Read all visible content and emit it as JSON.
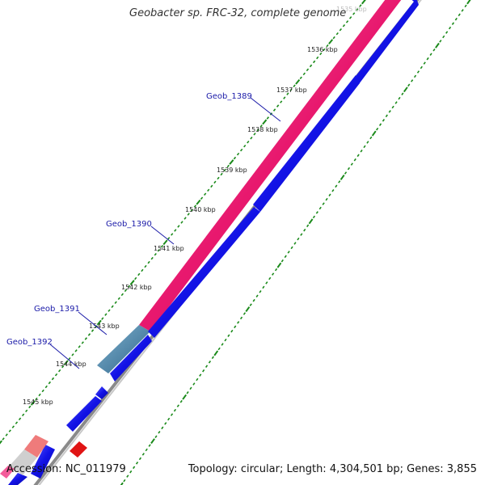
{
  "title": "Geobacter sp. FRC-32, complete genome",
  "accession_label": "Accession:",
  "accession": "NC_011979",
  "topology_label": "Topology:",
  "topology": "circular",
  "length_label": "Length:",
  "length": "4,304,501 bp",
  "genes_label": "Genes:",
  "genes": "3,855",
  "ticks": [
    {
      "label": "1535 kbp",
      "faded": true
    },
    {
      "label": "1536 kbp"
    },
    {
      "label": "1537 kbp"
    },
    {
      "label": "1538 kbp"
    },
    {
      "label": "1539 kbp"
    },
    {
      "label": "1540 kbp"
    },
    {
      "label": "1541 kbp"
    },
    {
      "label": "1542 kbp"
    },
    {
      "label": "1543 kbp"
    },
    {
      "label": "1544 kbp"
    },
    {
      "label": "1545 kbp"
    }
  ],
  "gene_labels": [
    {
      "label": "Geob_1389"
    },
    {
      "label": "Geob_1390"
    },
    {
      "label": "Geob_1391"
    },
    {
      "label": "Geob_1392"
    }
  ],
  "colors": {
    "forward_feature": "#e8186e",
    "forward_feature_light": "#f35c9a",
    "reverse_feature": "#1010e8",
    "reverse_feature_light": "#4a4af8",
    "steel_feature": "#3f7fa6",
    "salmon_feature": "#ef7b7b",
    "red_feature": "#e01414",
    "backbone": "#7a7a7a",
    "tick_green": "#1a8a1a",
    "label_blue": "#1a1aa8"
  }
}
